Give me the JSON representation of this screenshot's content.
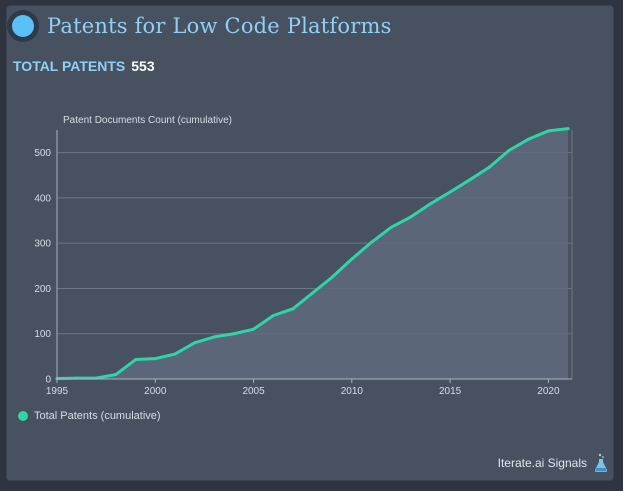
{
  "header": {
    "title": "Patents for Low Code Platforms",
    "total_label": "TOTAL PATENTS",
    "total_value": "553"
  },
  "footer": {
    "brand": "Iterate.ai Signals"
  },
  "colors": {
    "line": "#2ed5a8",
    "area": "#5f6a7c",
    "title": "#8fd1f6",
    "grid": "#6c7686"
  },
  "chart_data": {
    "type": "area",
    "ylabel": "Patent Documents Count (cumulative)",
    "xlabel": "",
    "xlim": [
      1995,
      2021.2
    ],
    "ylim": [
      0,
      550
    ],
    "xticks": [
      1995,
      2000,
      2005,
      2010,
      2015,
      2020
    ],
    "yticks": [
      0,
      100,
      200,
      300,
      400,
      500
    ],
    "grid": true,
    "legend_position": "bottom-left",
    "series": [
      {
        "name": "Total Patents (cumulative)",
        "x": [
          1995,
          1996,
          1997,
          1998,
          1999,
          2000,
          2001,
          2002,
          2003,
          2004,
          2005,
          2006,
          2007,
          2008,
          2009,
          2010,
          2011,
          2012,
          2013,
          2014,
          2015,
          2016,
          2017,
          2018,
          2019,
          2020,
          2021
        ],
        "values": [
          1,
          2,
          2,
          10,
          43,
          45,
          55,
          80,
          93,
          100,
          110,
          140,
          155,
          190,
          225,
          265,
          302,
          335,
          358,
          387,
          413,
          440,
          468,
          505,
          530,
          548,
          553
        ]
      }
    ]
  }
}
